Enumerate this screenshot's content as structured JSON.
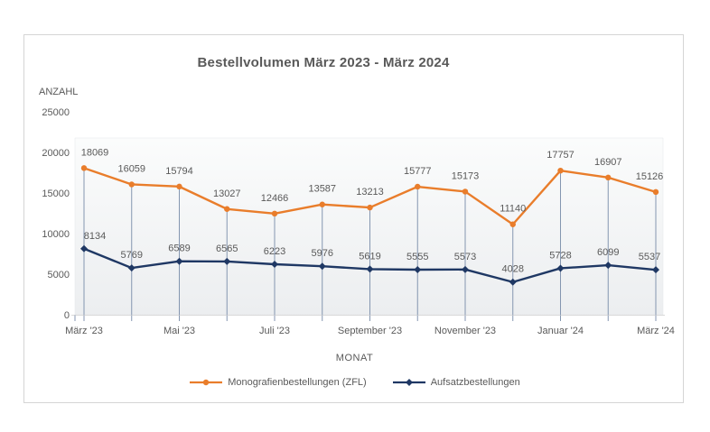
{
  "chart_data": {
    "type": "line",
    "title": "Bestellvolumen März 2023 - März 2024",
    "ylabel": "ANZAHL",
    "xlabel": "MONAT",
    "ylim": [
      0,
      25000
    ],
    "yticks": [
      0,
      5000,
      10000,
      15000,
      20000,
      25000
    ],
    "x_labels": [
      "März '23",
      "",
      "Mai '23",
      "",
      "Juli '23",
      "",
      "September '23",
      "",
      "November '23",
      "",
      "Januar '24",
      "",
      "März '24"
    ],
    "series": [
      {
        "name": "Monografienbestellungen (ZFL)",
        "color": "#E97D2B",
        "marker": "circle",
        "values": [
          18069,
          16059,
          15794,
          13027,
          12466,
          13587,
          13213,
          15777,
          15173,
          11140,
          17757,
          16907,
          15126
        ]
      },
      {
        "name": "Aufsatzbestellungen",
        "color": "#1F3864",
        "marker": "diamond",
        "values": [
          8134,
          5769,
          6589,
          6565,
          6223,
          5976,
          5619,
          5555,
          5573,
          4028,
          5728,
          6099,
          5537
        ]
      }
    ],
    "legend_position": "bottom",
    "grid": "vertical-drop-lines-only",
    "colors": {
      "drop_line": "#8496B0",
      "axis_line": "#D9D9D9",
      "text": "#595959",
      "plot_bg_top": "#FBFCFC",
      "plot_bg_bottom": "#ECEEF0",
      "card_border": "#D5D5D5"
    }
  }
}
